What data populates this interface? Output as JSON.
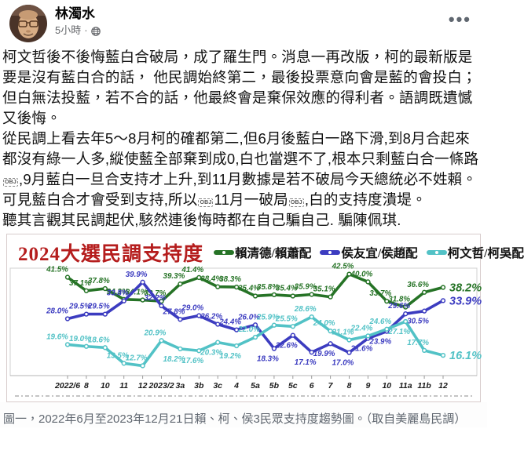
{
  "header": {
    "author": "林濁水",
    "time": "5小時",
    "separator": "·"
  },
  "post": {
    "paragraphs": [
      "柯文哲後不後悔藍白合破局，成了羅生門。消息一再改版，柯的最新版是 要是沒有藍白合的話， 他民調始終第二，最後投票意向會是藍的會投白；但白無法投藍，若不合的話，他最終會是棄保效應的得利者。語調既遺憾又後悔。",
      "從民調上看去年5～8月柯的確都第二,但6月後藍白一路下滑,到8月合起來都沒有綠一人多,縱使藍全部棄到成0,白也當選不了,根本只剩藍白合一條路￼,9月藍白一旦合支持才上升,到11月數據是若不破局今天總統必不姓賴。可見藍白合才會受到支持,所以￼11月一破局￼,白的支持度潰堤。",
      "聽其言觀其民調起伏,駭然連後悔時都在自己騙自己. 騙陳佩琪."
    ]
  },
  "chart_data": {
    "type": "line",
    "title": "2024大選民調支持度",
    "title_color": "#b51d1d",
    "categories": [
      "2022/6",
      "8",
      "10",
      "11",
      "12",
      "2023/2",
      "3a",
      "3b",
      "3c",
      "4",
      "5a",
      "5b",
      "5c",
      "6",
      "7",
      "8",
      "9",
      "10",
      "11a",
      "11b",
      "12"
    ],
    "series": [
      {
        "name": "賴清德/賴蕭配",
        "color": "#267326",
        "values": [
          41.5,
          37.1,
          37.8,
          34.3,
          34.1,
          33.7,
          39.3,
          41.4,
          38.4,
          38.3,
          35.4,
          35.8,
          35.4,
          35.9,
          35.1,
          42.5,
          40.0,
          33.7,
          31.8,
          36.6,
          38.2
        ],
        "label_below": []
      },
      {
        "name": "侯友宜/侯趙配",
        "color": "#3c3cc0",
        "values": [
          28.0,
          29.5,
          29.5,
          33.8,
          39.9,
          32.2,
          27.8,
          29.0,
          26.2,
          24.4,
          26.0,
          18.3,
          22.6,
          17.1,
          19.9,
          17.0,
          21.6,
          23.9,
          29.6,
          30.5,
          33.9
        ],
        "label_below": [
          11,
          12,
          13,
          14,
          15,
          16,
          17,
          19
        ]
      },
      {
        "name": "柯文哲/柯吳配",
        "color": "#52c2c6",
        "values": [
          19.6,
          19.0,
          18.6,
          13.5,
          12.7,
          20.9,
          18.2,
          17.6,
          20.3,
          19.2,
          22.0,
          25.9,
          25.5,
          28.6,
          24.0,
          21.1,
          22.4,
          24.6,
          27.1,
          17.7,
          16.1
        ],
        "label_below": [
          6,
          7,
          8,
          9,
          18
        ]
      }
    ],
    "ylim": [
      9.5,
      45
    ],
    "grid": false,
    "legend_position": "top"
  },
  "caption": "圖一，2022年6月至2023年12月21日賴、柯、侯3民眾支持度趨勢圖。（取自美麗島民調）"
}
